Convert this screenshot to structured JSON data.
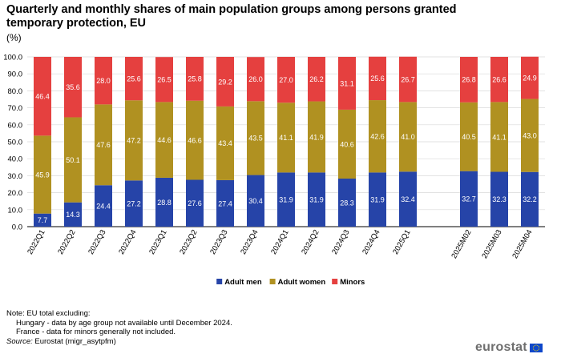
{
  "chart_data": {
    "type": "bar",
    "stacked": true,
    "title": "Quarterly and monthly shares of main population groups among persons granted temporary protection, EU",
    "unit_label": "(%)",
    "ylim": [
      0,
      100
    ],
    "yticks": [
      "0.0",
      "10.0",
      "20.0",
      "30.0",
      "40.0",
      "50.0",
      "60.0",
      "70.0",
      "80.0",
      "90.0",
      "100.0"
    ],
    "grid": true,
    "legend_position": "bottom-center",
    "categories": [
      "2022Q1",
      "2022Q2",
      "2022Q3",
      "2022Q4",
      "2023Q1",
      "2023Q2",
      "2023Q3",
      "2023Q4",
      "2024Q1",
      "2024Q2",
      "2024Q3",
      "2024Q4",
      "2025Q1",
      "",
      "2025M02",
      "2025M03",
      "2025M04"
    ],
    "series": [
      {
        "name": "Adult men",
        "color": "#2644a8",
        "values": [
          7.7,
          14.3,
          24.4,
          27.2,
          28.8,
          27.6,
          27.4,
          30.4,
          31.9,
          31.9,
          28.3,
          31.9,
          32.4,
          null,
          32.7,
          32.3,
          32.2
        ]
      },
      {
        "name": "Adult women",
        "color": "#b09121",
        "values": [
          45.9,
          50.1,
          47.6,
          47.2,
          44.6,
          46.6,
          43.4,
          43.5,
          41.1,
          41.9,
          40.6,
          42.6,
          41.0,
          null,
          40.5,
          41.1,
          43.0
        ]
      },
      {
        "name": "Minors",
        "color": "#e5403f",
        "values": [
          46.4,
          35.6,
          28.0,
          25.6,
          26.5,
          25.8,
          29.2,
          26.0,
          27.0,
          26.2,
          31.1,
          25.6,
          26.7,
          null,
          26.8,
          26.6,
          24.9
        ]
      }
    ]
  },
  "notes": {
    "heading": "Note: EU total excluding:",
    "lines": [
      "Hungary - data by age group not available until December 2024.",
      "France - data for minors generally not included."
    ],
    "source_label": "Source:",
    "source_text": " Eurostat (migr_asytpfm)"
  },
  "logo": {
    "text": "eurostat",
    "flag_color": "#0e47cb",
    "star_color": "#ffe400"
  }
}
